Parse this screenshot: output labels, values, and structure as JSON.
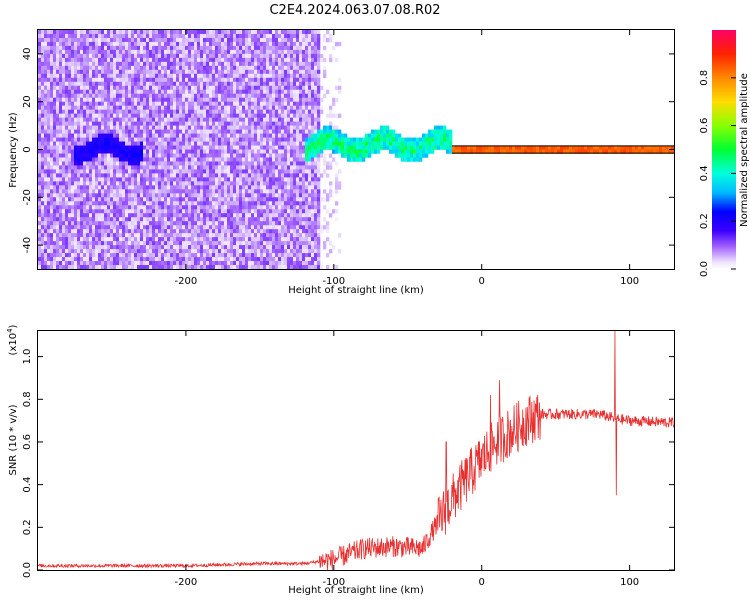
{
  "title": "C2E4.2024.063.07.08.R02",
  "chart_data": [
    {
      "type": "heatmap",
      "xlabel": "Height of straight line (km)",
      "ylabel": "Frequency (Hz)",
      "xlim": [
        -300,
        130
      ],
      "ylim": [
        -50,
        50
      ],
      "x_ticks": [
        -200,
        -100,
        0,
        100
      ],
      "x_tick_labels": [
        "-200",
        "-100",
        "0",
        "100"
      ],
      "y_ticks": [
        -40,
        -20,
        0,
        20,
        40
      ],
      "y_tick_labels": [
        "-40",
        "-20",
        "0",
        "20",
        "40"
      ],
      "grid": false,
      "description_of_data": [
        {
          "x_range": [
            -300,
            -110
          ],
          "freq_range": [
            -50,
            50
          ],
          "amplitude": [
            0.02,
            0.12
          ],
          "pattern": "diffuse noise"
        },
        {
          "x_range": [
            -110,
            -95
          ],
          "freq_range": [
            -50,
            50
          ],
          "amplitude": [
            0.0,
            0.06
          ],
          "pattern": "sparse noise"
        },
        {
          "x_range": [
            -275,
            -230
          ],
          "freq_center": 0,
          "freq_halfwidth": 4,
          "amplitude": [
            0.12,
            0.25
          ]
        },
        {
          "x_range": [
            -120,
            -20
          ],
          "freq_center": 2,
          "freq_halfwidth": 5,
          "amplitude": [
            0.2,
            0.55
          ]
        },
        {
          "x_range": [
            -20,
            130
          ],
          "freq_center": 0,
          "freq_halfwidth": 2,
          "amplitude": [
            0.75,
            0.9
          ]
        }
      ],
      "colorbar": {
        "label": "Normalized spectral amplitude",
        "range": [
          0,
          1
        ],
        "ticks": [
          0.0,
          0.2,
          0.4,
          0.6,
          0.8
        ],
        "tick_labels": [
          "0.0",
          "0.2",
          "0.4",
          "0.6",
          "0.8"
        ]
      }
    },
    {
      "type": "line",
      "xlabel": "Height of straight line (km)",
      "ylabel": "SNR (10 * v/v)",
      "y_scale_label": "(x10",
      "y_scale_exp": "4",
      "y_scale_close": ")",
      "xlim": [
        -300,
        130
      ],
      "ylim": [
        0,
        1.12
      ],
      "x_ticks": [
        -200,
        -100,
        0,
        100
      ],
      "x_tick_labels": [
        "-200",
        "-100",
        "0",
        "100"
      ],
      "y_ticks": [
        0.0,
        0.2,
        0.4,
        0.6,
        0.8,
        1.0
      ],
      "y_tick_labels": [
        "0.0",
        "0.2",
        "0.4",
        "0.6",
        "0.8",
        "1.0"
      ],
      "grid": false,
      "series_color": "#e83030",
      "trend_points": {
        "x": [
          -300,
          -250,
          -200,
          -150,
          -120,
          -100,
          -80,
          -60,
          -40,
          -30,
          -20,
          -10,
          0,
          10,
          20,
          30,
          40,
          50,
          60,
          80,
          90,
          100,
          130
        ],
        "y": [
          0.02,
          0.02,
          0.02,
          0.03,
          0.03,
          0.05,
          0.1,
          0.11,
          0.1,
          0.22,
          0.33,
          0.43,
          0.52,
          0.6,
          0.65,
          0.7,
          0.73,
          0.73,
          0.73,
          0.73,
          0.71,
          0.7,
          0.69
        ]
      },
      "spikes": [
        {
          "x": -24,
          "y": 0.6
        },
        {
          "x": 12,
          "y": 0.89
        },
        {
          "x": 6,
          "y": 0.82
        },
        {
          "x": 90,
          "y": 1.13
        },
        {
          "x": 91,
          "y": 0.35
        }
      ]
    }
  ]
}
